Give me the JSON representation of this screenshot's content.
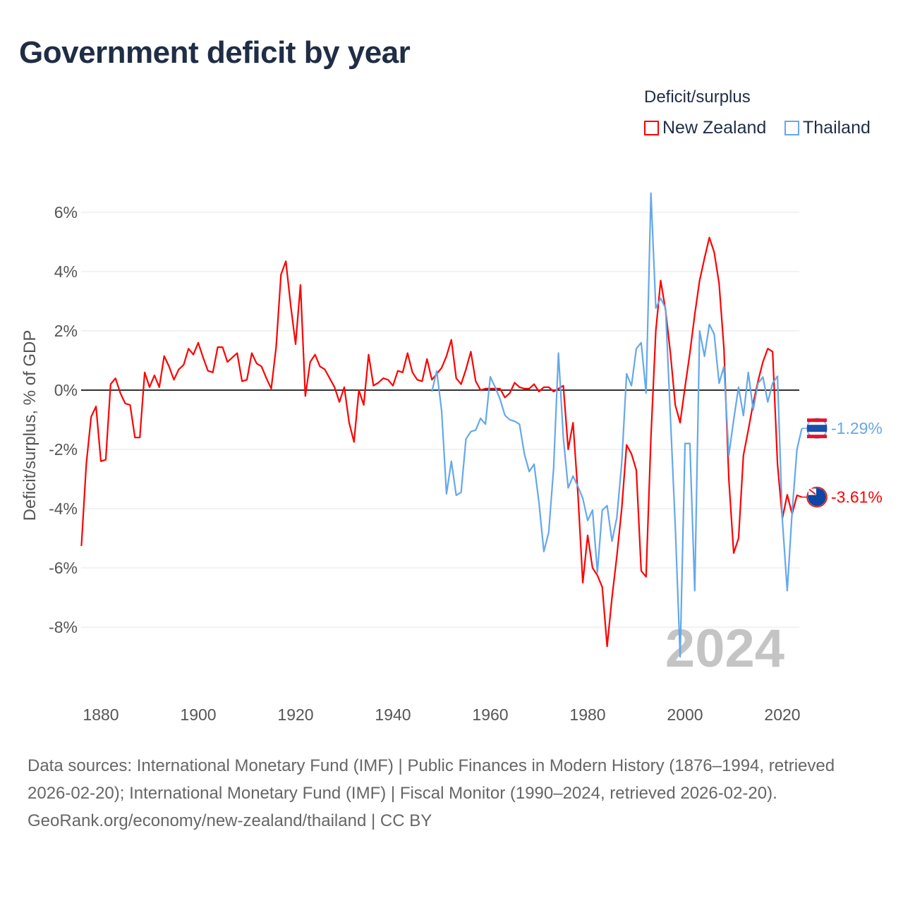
{
  "title": "Government deficit by year",
  "legend": {
    "title": "Deficit/surplus",
    "items": [
      {
        "name": "New Zealand",
        "color": "#ff0000"
      },
      {
        "name": "Thailand",
        "color": "#64a8ec"
      }
    ]
  },
  "footer": {
    "sources": "Data sources: International Monetary Fund (IMF) | Public Finances in Modern History (1876–1994, retrieved 2026-02-20); International Monetary Fund (IMF) | Fiscal Monitor (1990–2024, retrieved 2026-02-20).",
    "credit": "GeoRank.org/economy/new-zealand/thailand | CC BY"
  },
  "chart_data": {
    "type": "line",
    "title": "Government deficit by year",
    "ylabel": "Deficit/surplus, % of GDP",
    "xlabel": "",
    "xlim": [
      1876,
      2024
    ],
    "ylim": [
      -9.5,
      7
    ],
    "yticks": [
      6,
      4,
      2,
      0,
      -2,
      -4,
      -6,
      -8
    ],
    "ytick_labels": [
      "6%",
      "4%",
      "2%",
      "0%",
      "-2%",
      "-4%",
      "-6%",
      "-8%"
    ],
    "xticks": [
      1880,
      1900,
      1920,
      1940,
      1960,
      1980,
      2000,
      2020
    ],
    "xtick_labels": [
      "1880",
      "1900",
      "1920",
      "1940",
      "1960",
      "1980",
      "2000",
      "2020"
    ],
    "year_watermark": "2024",
    "grid": true,
    "series": [
      {
        "name": "New Zealand",
        "color": "#ff0000",
        "start_year": 1876,
        "end_label": "-3.61%",
        "values": [
          -5.26,
          -2.5,
          -0.9,
          -0.55,
          -2.4,
          -2.35,
          0.2,
          0.4,
          -0.1,
          -0.45,
          -0.5,
          -1.6,
          -1.6,
          0.6,
          0.1,
          0.5,
          0.1,
          1.15,
          0.8,
          0.35,
          0.7,
          0.85,
          1.4,
          1.2,
          1.6,
          1.1,
          0.65,
          0.6,
          1.45,
          1.45,
          0.95,
          1.1,
          1.25,
          0.3,
          0.35,
          1.25,
          0.9,
          0.8,
          0.4,
          0.05,
          1.45,
          3.9,
          4.35,
          2.85,
          1.55,
          3.55,
          -0.2,
          0.95,
          1.2,
          0.8,
          0.7,
          0.4,
          0.1,
          -0.4,
          0.1,
          -1.1,
          -1.75,
          0,
          -0.5,
          1.2,
          0.15,
          0.25,
          0.4,
          0.35,
          0.15,
          0.65,
          0.6,
          1.25,
          0.6,
          0.35,
          0.3,
          1.05,
          0.35,
          0.55,
          0.75,
          1.15,
          1.7,
          0.4,
          0.2,
          0.7,
          1.3,
          0.3,
          0,
          0.05,
          0.05,
          0.05,
          0.05,
          -0.25,
          -0.1,
          0.25,
          0.1,
          0.05,
          0.05,
          0.2,
          -0.05,
          0.1,
          0.1,
          -0.05,
          0.05,
          0.15,
          -2.0,
          -1.1,
          -3.5,
          -6.5,
          -4.9,
          -6.0,
          -6.25,
          -6.65,
          -8.65,
          -7.0,
          -5.6,
          -4.0,
          -1.85,
          -2.15,
          -2.7,
          -6.1,
          -6.3,
          -1.6,
          2.0,
          3.7,
          2.7,
          1.25,
          -0.5,
          -1.1,
          0.1,
          1.25,
          2.55,
          3.7,
          4.45,
          5.15,
          4.65,
          3.6,
          1.4,
          -3.0,
          -5.5,
          -5.0,
          -2.2,
          -1.35,
          -0.45,
          0.3,
          0.95,
          1.4,
          1.3,
          -2.5,
          -4.33,
          -3.53,
          -4.18,
          -3.55,
          -3.61
        ]
      },
      {
        "name": "Thailand",
        "color": "#64a8ec",
        "start_year": 1948,
        "end_label": "-1.29%",
        "values": [
          -0.05,
          0.65,
          -0.7,
          -3.5,
          -2.4,
          -3.55,
          -3.45,
          -1.65,
          -1.4,
          -1.35,
          -0.95,
          -1.15,
          0.45,
          0.1,
          -0.3,
          -0.85,
          -1.0,
          -1.05,
          -1.15,
          -2.15,
          -2.75,
          -2.5,
          -3.8,
          -5.45,
          -4.8,
          -2.65,
          1.25,
          -1.6,
          -3.3,
          -2.9,
          -3.25,
          -3.65,
          -4.4,
          -4.05,
          -6.15,
          -4.05,
          -3.9,
          -5.1,
          -4.3,
          -2.45,
          0.55,
          0.15,
          1.4,
          1.6,
          -0.1,
          6.65,
          2.77,
          3.1,
          2.77,
          -0.9,
          -4.6,
          -9.0,
          -1.8,
          -1.8,
          -6.77,
          2.0,
          1.14,
          2.22,
          1.89,
          0.23,
          0.8,
          -2.2,
          -1.0,
          0.1,
          -0.86,
          0.6,
          -0.67,
          0.23,
          0.44,
          -0.4,
          0.23,
          0.47,
          -4.38,
          -6.77,
          -4.12,
          -2.0,
          -1.29
        ]
      }
    ]
  }
}
